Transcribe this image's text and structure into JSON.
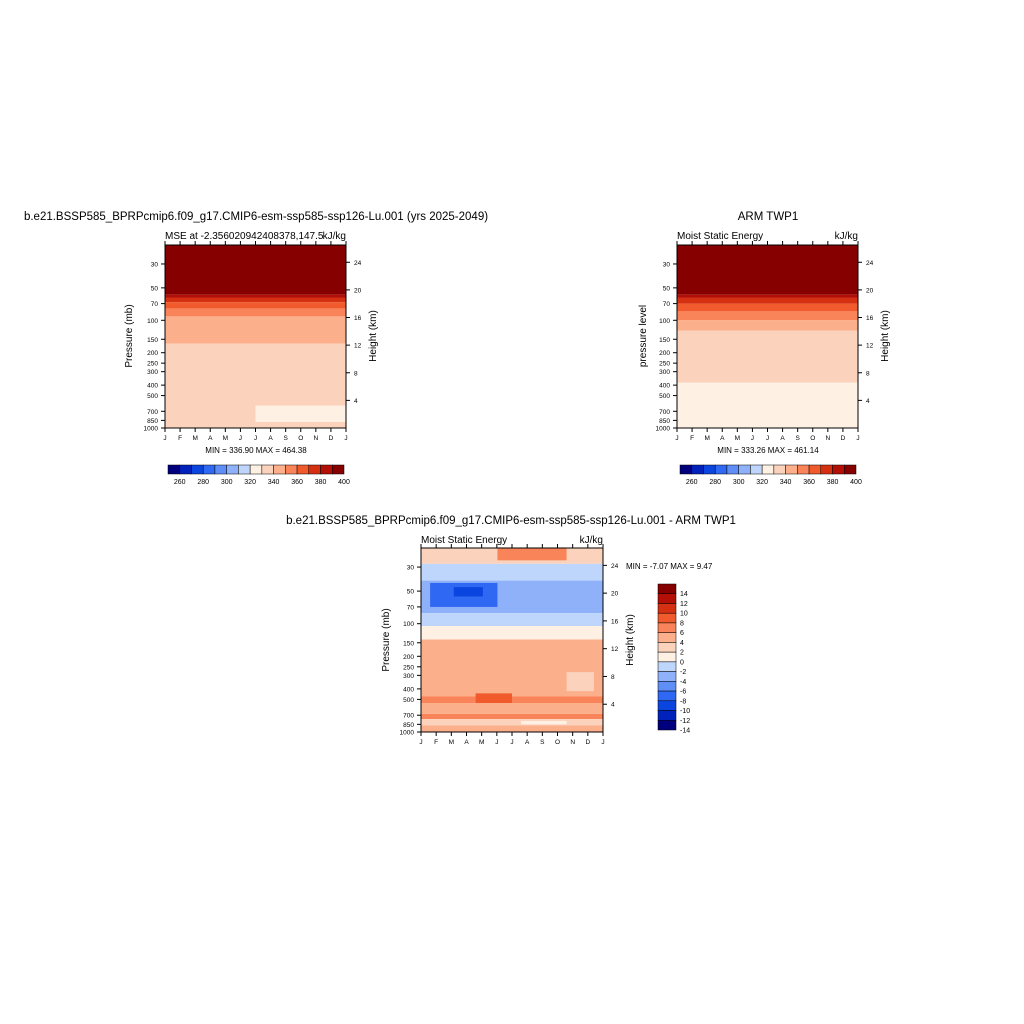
{
  "panels": [
    {
      "title": "b.e21.BSSP585_BPRPcmip6.f09_g17.CMIP6-esm-ssp585-ssp126-Lu.001 (yrs 2025-2049)",
      "subtitle_left": "MSE at -2.356020942408378,147.5",
      "subtitle_right": "kJ/kg",
      "ylabel": "Pressure (mb)",
      "ylabel_right": "Height (km)",
      "stats": "MIN = 336.90 MAX = 464.38"
    },
    {
      "title": "ARM TWP1",
      "subtitle_left": "Moist Static Energy",
      "subtitle_right": "kJ/kg",
      "ylabel": "pressure level",
      "ylabel_right": "Height (km)",
      "stats": "MIN = 333.26 MAX = 461.14"
    },
    {
      "title": "b.e21.BSSP585_BPRPcmip6.f09_g17.CMIP6-esm-ssp585-ssp126-Lu.001 - ARM TWP1",
      "subtitle_left": "Moist Static Energy",
      "subtitle_right": "kJ/kg",
      "ylabel": "Pressure (mb)",
      "ylabel_right": "Height (km)",
      "stats": "MIN =  -7.07 MAX =   9.47"
    }
  ],
  "chart_data": [
    {
      "type": "heatmap",
      "x": [
        "J",
        "F",
        "M",
        "A",
        "M",
        "J",
        "J",
        "A",
        "S",
        "O",
        "N",
        "D",
        "J"
      ],
      "pressure_ticks": [
        "30",
        "50",
        "70",
        "100",
        "150",
        "200",
        "250",
        "300",
        "400",
        "500",
        "700",
        "850",
        "1000"
      ],
      "pressure_tick_values": [
        30,
        50,
        70,
        100,
        150,
        200,
        250,
        300,
        400,
        500,
        700,
        850,
        1000
      ],
      "height_ticks": [
        "24",
        "20",
        "16",
        "12",
        "8",
        "4"
      ],
      "height_tick_values": [
        24,
        20,
        16,
        12,
        8,
        4
      ],
      "colorbar_labels": [
        "260",
        "280",
        "300",
        "320",
        "340",
        "360",
        "380",
        "400"
      ],
      "colorbar_colors": [
        "#00007f",
        "#0022bb",
        "#0b45e0",
        "#2f68f2",
        "#5f8ef7",
        "#8fb1fa",
        "#bfd6fc",
        "#fff0e4",
        "#fbd3bc",
        "#fcaf8b",
        "#f98459",
        "#f05a2c",
        "#d63012",
        "#b30f06",
        "#870000"
      ],
      "contours": [
        {
          "p_top": 20,
          "p_bottom": 58,
          "color": "#870000"
        },
        {
          "p_top": 58,
          "p_bottom": 62,
          "color": "#b30f06"
        },
        {
          "p_top": 62,
          "p_bottom": 68,
          "color": "#d63012"
        },
        {
          "p_top": 68,
          "p_bottom": 78,
          "color": "#f05a2c"
        },
        {
          "p_top": 78,
          "p_bottom": 92,
          "color": "#f98459"
        },
        {
          "p_top": 92,
          "p_bottom": 165,
          "color": "#fcaf8b"
        },
        {
          "p_top": 165,
          "p_bottom": 1000,
          "color": "#fbd3bc"
        },
        {
          "p_top": 620,
          "p_bottom": 880,
          "color": "#fff0e4",
          "x_start": 0.5
        }
      ]
    },
    {
      "type": "heatmap",
      "x": [
        "J",
        "F",
        "M",
        "A",
        "M",
        "J",
        "J",
        "A",
        "S",
        "O",
        "N",
        "D",
        "J"
      ],
      "pressure_ticks": [
        "30",
        "50",
        "70",
        "100",
        "150",
        "200",
        "250",
        "300",
        "400",
        "500",
        "700",
        "850",
        "1000"
      ],
      "pressure_tick_values": [
        30,
        50,
        70,
        100,
        150,
        200,
        250,
        300,
        400,
        500,
        700,
        850,
        1000
      ],
      "height_ticks": [
        "24",
        "20",
        "16",
        "12",
        "8",
        "4"
      ],
      "height_tick_values": [
        24,
        20,
        16,
        12,
        8,
        4
      ],
      "colorbar_labels": [
        "260",
        "280",
        "300",
        "320",
        "340",
        "360",
        "380",
        "400"
      ],
      "colorbar_colors": [
        "#00007f",
        "#0022bb",
        "#0b45e0",
        "#2f68f2",
        "#5f8ef7",
        "#8fb1fa",
        "#bfd6fc",
        "#fff0e4",
        "#fbd3bc",
        "#fcaf8b",
        "#f98459",
        "#f05a2c",
        "#d63012",
        "#b30f06",
        "#870000"
      ],
      "contours": [
        {
          "p_top": 20,
          "p_bottom": 58,
          "color": "#870000"
        },
        {
          "p_top": 58,
          "p_bottom": 62,
          "color": "#b30f06"
        },
        {
          "p_top": 62,
          "p_bottom": 70,
          "color": "#d63012"
        },
        {
          "p_top": 70,
          "p_bottom": 82,
          "color": "#f05a2c"
        },
        {
          "p_top": 82,
          "p_bottom": 100,
          "color": "#f98459"
        },
        {
          "p_top": 100,
          "p_bottom": 125,
          "color": "#fcaf8b"
        },
        {
          "p_top": 125,
          "p_bottom": 380,
          "color": "#fbd3bc"
        },
        {
          "p_top": 380,
          "p_bottom": 1000,
          "color": "#fff0e4"
        }
      ]
    },
    {
      "type": "heatmap",
      "x": [
        "J",
        "F",
        "M",
        "A",
        "M",
        "J",
        "J",
        "A",
        "S",
        "O",
        "N",
        "D",
        "J"
      ],
      "pressure_ticks": [
        "30",
        "50",
        "70",
        "100",
        "150",
        "200",
        "250",
        "300",
        "400",
        "500",
        "700",
        "850",
        "1000"
      ],
      "pressure_tick_values": [
        30,
        50,
        70,
        100,
        150,
        200,
        250,
        300,
        400,
        500,
        700,
        850,
        1000
      ],
      "height_ticks": [
        "24",
        "20",
        "16",
        "12",
        "8",
        "4"
      ],
      "height_tick_values": [
        24,
        20,
        16,
        12,
        8,
        4
      ],
      "colorbar_labels": [
        "14",
        "12",
        "10",
        "8",
        "6",
        "4",
        "2",
        "0",
        "-2",
        "-4",
        "-6",
        "-8",
        "-10",
        "-12",
        "-14"
      ],
      "colorbar_colors": [
        "#870000",
        "#b30f06",
        "#d63012",
        "#f05a2c",
        "#f98459",
        "#fcaf8b",
        "#fbd3bc",
        "#fff0e4",
        "#bfd6fc",
        "#8fb1fa",
        "#5f8ef7",
        "#2f68f2",
        "#0b45e0",
        "#0022bb",
        "#00007f"
      ],
      "contours": [
        {
          "p_top": 20,
          "p_bottom": 28,
          "color": "#fbd3bc"
        },
        {
          "p_top": 20,
          "p_bottom": 26,
          "color": "#f98459",
          "x_start": 0.42,
          "x_end": 0.8
        },
        {
          "p_top": 28,
          "p_bottom": 40,
          "color": "#bfd6fc"
        },
        {
          "p_top": 40,
          "p_bottom": 80,
          "color": "#8fb1fa"
        },
        {
          "p_top": 42,
          "p_bottom": 70,
          "color": "#2f68f2",
          "x_start": 0.05,
          "x_end": 0.42
        },
        {
          "p_top": 46,
          "p_bottom": 56,
          "color": "#0b45e0",
          "x_start": 0.18,
          "x_end": 0.34
        },
        {
          "p_top": 80,
          "p_bottom": 105,
          "color": "#bfd6fc"
        },
        {
          "p_top": 105,
          "p_bottom": 140,
          "color": "#fff0e4"
        },
        {
          "p_top": 140,
          "p_bottom": 470,
          "color": "#fcaf8b"
        },
        {
          "p_top": 280,
          "p_bottom": 420,
          "color": "#fbd3bc",
          "x_start": 0.8,
          "x_end": 0.95
        },
        {
          "p_top": 470,
          "p_bottom": 540,
          "color": "#f98459"
        },
        {
          "p_top": 440,
          "p_bottom": 600,
          "color": "#f05a2c",
          "x_start": 0.3,
          "x_end": 0.5
        },
        {
          "p_top": 540,
          "p_bottom": 680,
          "color": "#fcaf8b"
        },
        {
          "p_top": 680,
          "p_bottom": 760,
          "color": "#f98459"
        },
        {
          "p_top": 760,
          "p_bottom": 870,
          "color": "#fbd3bc"
        },
        {
          "p_top": 790,
          "p_bottom": 850,
          "color": "#fff0e4",
          "x_start": 0.55,
          "x_end": 0.8
        },
        {
          "p_top": 870,
          "p_bottom": 1000,
          "color": "#fcaf8b"
        }
      ]
    }
  ]
}
